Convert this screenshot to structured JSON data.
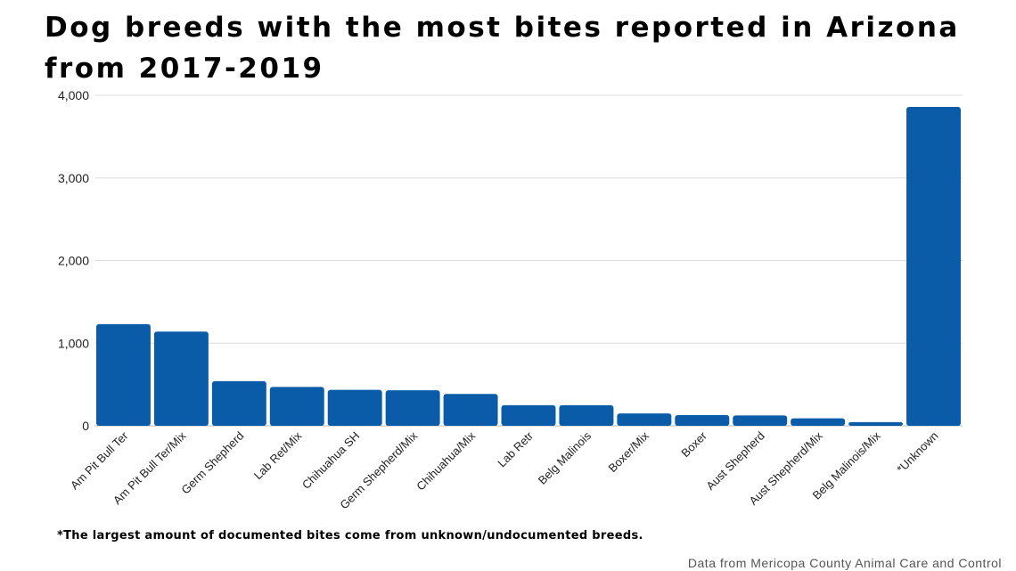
{
  "chart_data": {
    "type": "bar",
    "title": "Dog breeds with the most bites reported in Arizona from 2017-2019",
    "categories": [
      "Am Pit Bull Ter",
      "Am Pit Bull Ter/Mix",
      "Germ Shepherd",
      "Lab Ret/Mix",
      "Chihuahua SH",
      "Germ Shepherd/Mix",
      "Chihuahua/Mix",
      "Lab Retr",
      "Belg Malinois",
      "Boxer/Mix",
      "Boxer",
      "Aust Shepherd",
      "Aust Shepherd/Mix",
      "Belg Malinois/Mix",
      "*Unknown"
    ],
    "values": [
      1230,
      1140,
      540,
      470,
      435,
      430,
      385,
      250,
      250,
      150,
      130,
      125,
      90,
      45,
      3860
    ],
    "ylim": [
      0,
      4000
    ],
    "yticks": [
      0,
      1000,
      2000,
      3000,
      4000
    ],
    "ytick_labels": [
      "0",
      "1,000",
      "2,000",
      "3,000",
      "4,000"
    ],
    "grid": true,
    "bar_color": "#0a5ca8",
    "footnote": "*The largest amount of documented bites come from unknown/undocumented breeds.",
    "source": "Data from Mericopa County Animal Care and Control"
  }
}
